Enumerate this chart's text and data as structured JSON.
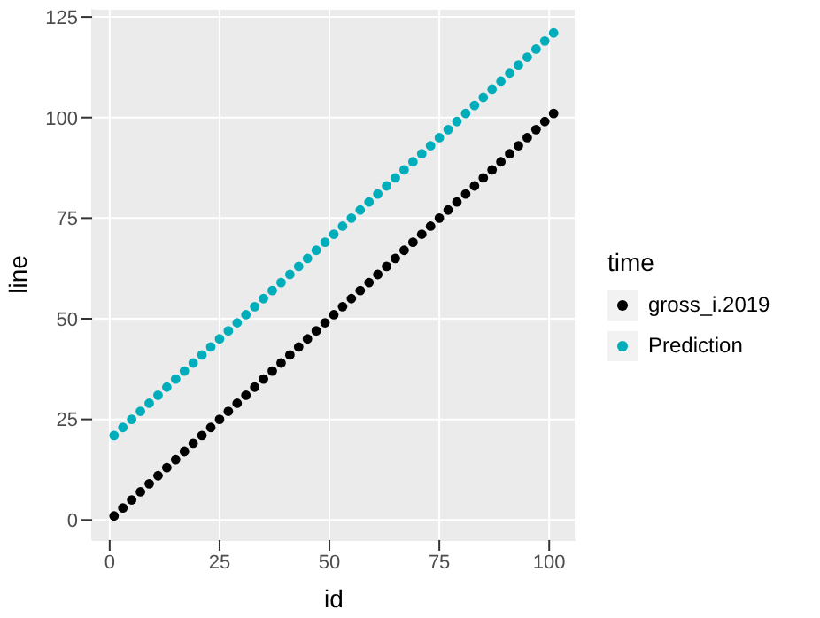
{
  "chart_data": {
    "type": "scatter",
    "xlabel": "id",
    "ylabel": "line",
    "legend_title": "time",
    "legend": "right",
    "grid": true,
    "marker": "circle",
    "x": [
      1,
      3,
      5,
      7,
      9,
      11,
      13,
      15,
      17,
      19,
      21,
      23,
      25,
      27,
      29,
      31,
      33,
      35,
      37,
      39,
      41,
      43,
      45,
      47,
      49,
      51,
      53,
      55,
      57,
      59,
      61,
      63,
      65,
      67,
      69,
      71,
      73,
      75,
      77,
      79,
      81,
      83,
      85,
      87,
      89,
      91,
      93,
      95,
      97,
      99,
      101
    ],
    "xlim": [
      -4,
      106
    ],
    "xticks": [
      0,
      25,
      50,
      75,
      100
    ],
    "ylim": [
      -5,
      127
    ],
    "yticks": [
      0,
      25,
      50,
      75,
      100,
      125
    ],
    "series": [
      {
        "name": "gross_i.2019",
        "color": "#000000",
        "values": [
          1,
          3,
          5,
          7,
          9,
          11,
          13,
          15,
          17,
          19,
          21,
          23,
          25,
          27,
          29,
          31,
          33,
          35,
          37,
          39,
          41,
          43,
          45,
          47,
          49,
          51,
          53,
          55,
          57,
          59,
          61,
          63,
          65,
          67,
          69,
          71,
          73,
          75,
          77,
          79,
          81,
          83,
          85,
          87,
          89,
          91,
          93,
          95,
          97,
          99,
          101
        ]
      },
      {
        "name": "Prediction",
        "color": "#00aebb",
        "values": [
          21,
          23,
          25,
          27,
          29,
          31,
          33,
          35,
          37,
          39,
          41,
          43,
          45,
          47,
          49,
          51,
          53,
          55,
          57,
          59,
          61,
          63,
          65,
          67,
          69,
          71,
          73,
          75,
          77,
          79,
          81,
          83,
          85,
          87,
          89,
          91,
          93,
          95,
          97,
          99,
          101,
          103,
          105,
          107,
          109,
          111,
          113,
          115,
          117,
          119,
          121
        ]
      }
    ]
  }
}
